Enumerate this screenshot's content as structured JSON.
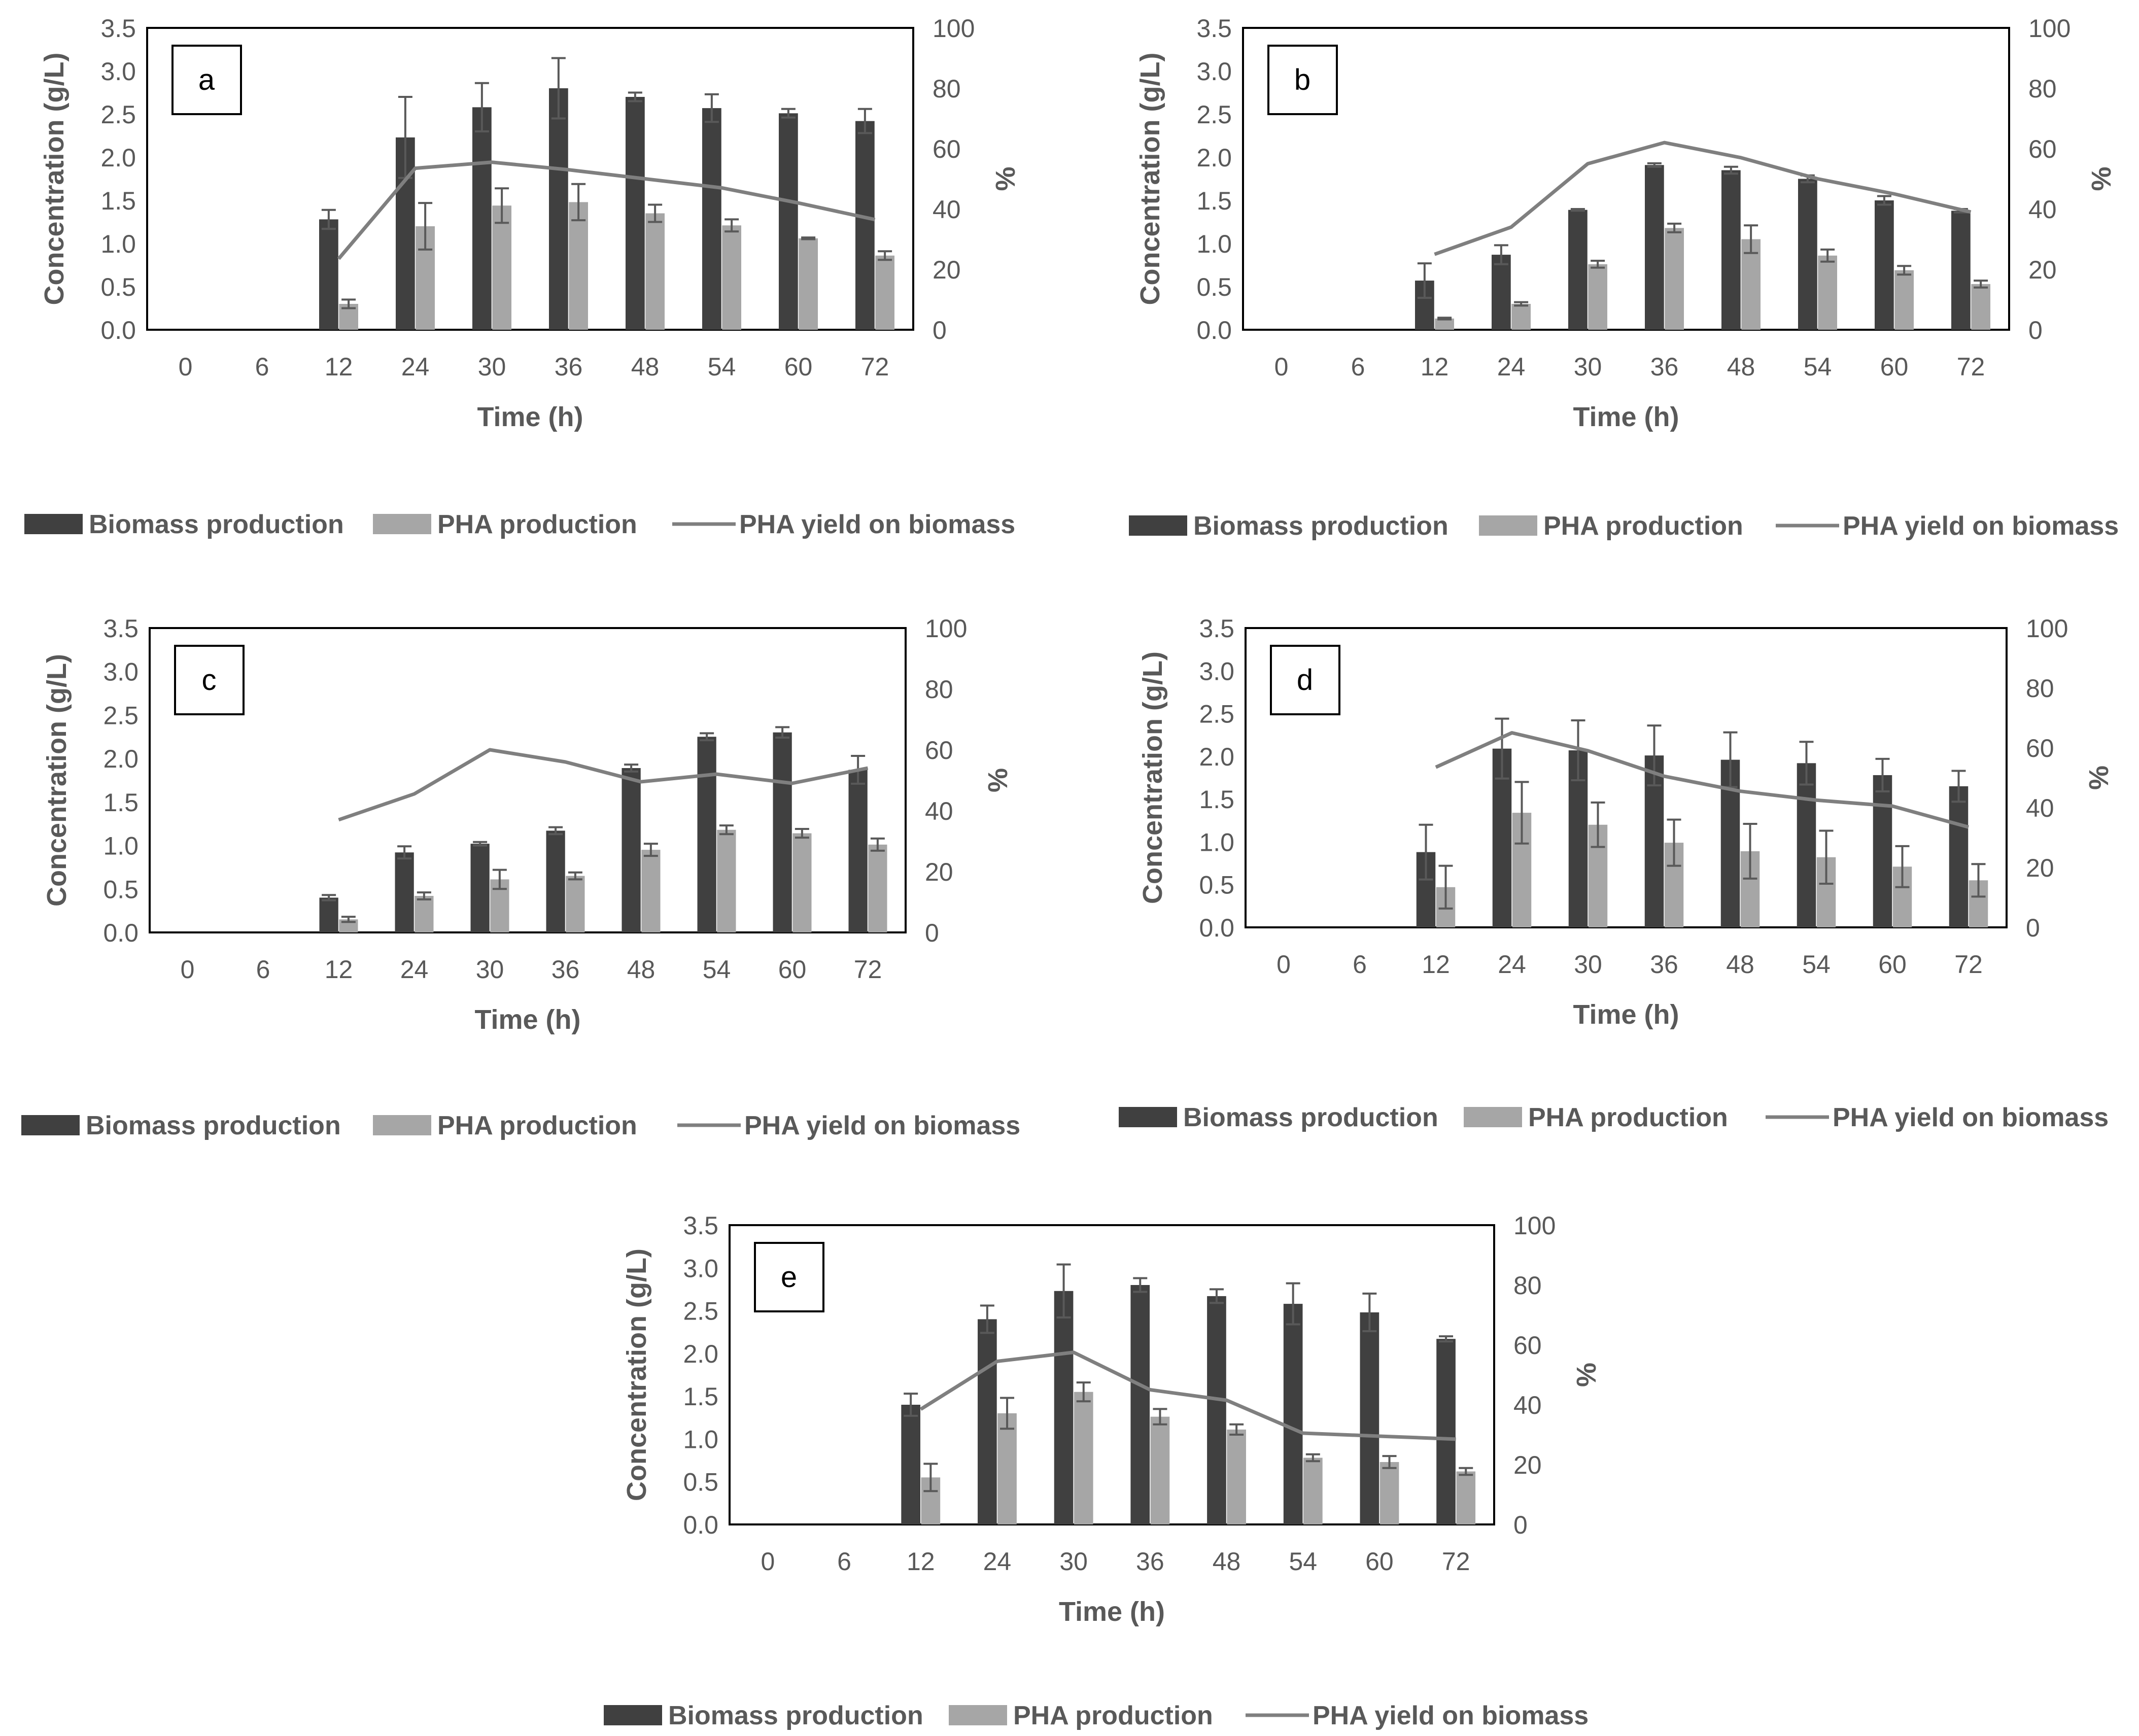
{
  "figure": {
    "colors": {
      "biomass": "#404040",
      "pha": "#a6a6a6",
      "yield_line": "#7f7f7f",
      "error_bar": "#595959",
      "frame": "#000000",
      "text": "#595959"
    }
  },
  "chart_data": [
    {
      "panel": "a",
      "type": "bar",
      "categories": [
        "0",
        "6",
        "12",
        "24",
        "30",
        "36",
        "48",
        "54",
        "60",
        "72"
      ],
      "xlabel": "Time (h)",
      "ylabel": "Concentration (g/L)",
      "y2label": "%",
      "ylim": [
        0,
        3.5
      ],
      "yticks": [
        "0.0",
        "0.5",
        "1.0",
        "1.5",
        "2.0",
        "2.5",
        "3.0",
        "3.5"
      ],
      "y2lim": [
        0,
        100
      ],
      "y2ticks": [
        "0",
        "20",
        "40",
        "60",
        "80",
        "100"
      ],
      "legend": [
        "Biomass production",
        "PHA production",
        "PHA yield on biomass"
      ],
      "series": [
        {
          "name": "Biomass production",
          "kind": "bar",
          "values": [
            null,
            null,
            1.28,
            2.23,
            2.58,
            2.8,
            2.7,
            2.57,
            2.51,
            2.42
          ],
          "errors": [
            null,
            null,
            0.11,
            0.47,
            0.28,
            0.35,
            0.05,
            0.16,
            0.05,
            0.14
          ]
        },
        {
          "name": "PHA production",
          "kind": "bar",
          "values": [
            null,
            null,
            0.3,
            1.2,
            1.44,
            1.48,
            1.35,
            1.21,
            1.06,
            0.86
          ],
          "errors": [
            null,
            null,
            0.05,
            0.27,
            0.2,
            0.21,
            0.1,
            0.07,
            0.01,
            0.05
          ]
        },
        {
          "name": "PHA yield on biomass",
          "kind": "line",
          "axis": "y2",
          "values": [
            null,
            null,
            23.5,
            53.5,
            55.5,
            53.0,
            50.0,
            47.0,
            42.0,
            36.5
          ]
        }
      ]
    },
    {
      "panel": "b",
      "type": "bar",
      "categories": [
        "0",
        "6",
        "12",
        "24",
        "30",
        "36",
        "48",
        "54",
        "60",
        "72"
      ],
      "xlabel": "Time (h)",
      "ylabel": "Concentration (g/L)",
      "y2label": "%",
      "ylim": [
        0,
        3.5
      ],
      "yticks": [
        "0.0",
        "0.5",
        "1.0",
        "1.5",
        "2.0",
        "2.5",
        "3.0",
        "3.5"
      ],
      "y2lim": [
        0,
        100
      ],
      "y2ticks": [
        "0",
        "20",
        "40",
        "60",
        "80",
        "100"
      ],
      "legend": [
        "Biomass production",
        "PHA production",
        "PHA yield on biomass"
      ],
      "series": [
        {
          "name": "Biomass production",
          "kind": "bar",
          "values": [
            null,
            null,
            0.57,
            0.87,
            1.39,
            1.91,
            1.85,
            1.75,
            1.5,
            1.38
          ],
          "errors": [
            null,
            null,
            0.2,
            0.11,
            0.01,
            0.02,
            0.04,
            0.04,
            0.05,
            0.02
          ]
        },
        {
          "name": "PHA production",
          "kind": "bar",
          "values": [
            null,
            null,
            0.13,
            0.3,
            0.76,
            1.18,
            1.05,
            0.86,
            0.69,
            0.53
          ],
          "errors": [
            null,
            null,
            0.01,
            0.02,
            0.04,
            0.05,
            0.16,
            0.07,
            0.05,
            0.04
          ]
        },
        {
          "name": "PHA yield on biomass",
          "kind": "line",
          "axis": "y2",
          "values": [
            null,
            null,
            25.0,
            34.0,
            55.0,
            62.0,
            57.0,
            50.0,
            45.0,
            39.0
          ]
        }
      ]
    },
    {
      "panel": "c",
      "type": "bar",
      "categories": [
        "0",
        "6",
        "12",
        "24",
        "30",
        "36",
        "48",
        "54",
        "60",
        "72"
      ],
      "xlabel": "Time (h)",
      "ylabel": "Concentration (g/L)",
      "y2label": "%",
      "ylim": [
        0,
        3.5
      ],
      "yticks": [
        "0.0",
        "0.5",
        "1.0",
        "1.5",
        "2.0",
        "2.5",
        "3.0",
        "3.5"
      ],
      "y2lim": [
        0,
        100
      ],
      "y2ticks": [
        "0",
        "20",
        "40",
        "60",
        "80",
        "100"
      ],
      "legend": [
        "Biomass production",
        "PHA production",
        "PHA yield on biomass"
      ],
      "series": [
        {
          "name": "Biomass production",
          "kind": "bar",
          "values": [
            null,
            null,
            0.4,
            0.92,
            1.02,
            1.17,
            1.89,
            2.25,
            2.3,
            1.87
          ],
          "errors": [
            null,
            null,
            0.03,
            0.07,
            0.02,
            0.04,
            0.04,
            0.04,
            0.06,
            0.16
          ]
        },
        {
          "name": "PHA production",
          "kind": "bar",
          "values": [
            null,
            null,
            0.15,
            0.42,
            0.61,
            0.65,
            0.95,
            1.18,
            1.14,
            1.01
          ],
          "errors": [
            null,
            null,
            0.03,
            0.04,
            0.11,
            0.04,
            0.07,
            0.05,
            0.05,
            0.07
          ]
        },
        {
          "name": "PHA yield on biomass",
          "kind": "line",
          "axis": "y2",
          "values": [
            null,
            null,
            37.0,
            45.5,
            60.0,
            56.0,
            49.5,
            52.0,
            49.0,
            54.0
          ]
        }
      ]
    },
    {
      "panel": "d",
      "type": "bar",
      "categories": [
        "0",
        "6",
        "12",
        "24",
        "30",
        "36",
        "48",
        "54",
        "60",
        "72"
      ],
      "xlabel": "Time (h)",
      "ylabel": "Concentration (g/L)",
      "y2label": "%",
      "ylim": [
        0,
        3.5
      ],
      "yticks": [
        "0.0",
        "0.5",
        "1.0",
        "1.5",
        "2.0",
        "2.5",
        "3.0",
        "3.5"
      ],
      "y2lim": [
        0,
        100
      ],
      "y2ticks": [
        "0",
        "20",
        "40",
        "60",
        "80",
        "100"
      ],
      "legend": [
        "Biomass production",
        "PHA production",
        "PHA yield on biomass"
      ],
      "series": [
        {
          "name": "Biomass production",
          "kind": "bar",
          "values": [
            null,
            null,
            0.88,
            2.09,
            2.07,
            2.01,
            1.96,
            1.92,
            1.78,
            1.65
          ],
          "errors": [
            null,
            null,
            0.32,
            0.35,
            0.35,
            0.35,
            0.32,
            0.25,
            0.19,
            0.18
          ]
        },
        {
          "name": "PHA production",
          "kind": "bar",
          "values": [
            null,
            null,
            0.47,
            1.34,
            1.2,
            0.99,
            0.89,
            0.82,
            0.71,
            0.55
          ],
          "errors": [
            null,
            null,
            0.25,
            0.36,
            0.26,
            0.27,
            0.32,
            0.31,
            0.24,
            0.19
          ]
        },
        {
          "name": "PHA yield on biomass",
          "kind": "line",
          "axis": "y2",
          "values": [
            null,
            null,
            53.5,
            65.0,
            59.0,
            50.5,
            45.5,
            42.5,
            40.5,
            33.5
          ]
        }
      ]
    },
    {
      "panel": "e",
      "type": "bar",
      "categories": [
        "0",
        "6",
        "12",
        "24",
        "30",
        "36",
        "48",
        "54",
        "60",
        "72"
      ],
      "xlabel": "Time (h)",
      "ylabel": "Concentration (g/L)",
      "y2label": "%",
      "ylim": [
        0,
        3.5
      ],
      "yticks": [
        "0.0",
        "0.5",
        "1.0",
        "1.5",
        "2.0",
        "2.5",
        "3.0",
        "3.5"
      ],
      "y2lim": [
        0,
        100
      ],
      "y2ticks": [
        "0",
        "20",
        "40",
        "60",
        "80",
        "100"
      ],
      "legend": [
        "Biomass production",
        "PHA production",
        "PHA yield on biomass"
      ],
      "series": [
        {
          "name": "Biomass production",
          "kind": "bar",
          "values": [
            null,
            null,
            1.4,
            2.4,
            2.73,
            2.8,
            2.67,
            2.58,
            2.48,
            2.17
          ],
          "errors": [
            null,
            null,
            0.13,
            0.16,
            0.31,
            0.08,
            0.08,
            0.24,
            0.22,
            0.03
          ]
        },
        {
          "name": "PHA production",
          "kind": "bar",
          "values": [
            null,
            null,
            0.55,
            1.3,
            1.55,
            1.26,
            1.11,
            0.78,
            0.73,
            0.62
          ],
          "errors": [
            null,
            null,
            0.16,
            0.18,
            0.11,
            0.09,
            0.06,
            0.04,
            0.07,
            0.04
          ]
        },
        {
          "name": "PHA yield on biomass",
          "kind": "line",
          "axis": "y2",
          "values": [
            null,
            null,
            38.5,
            54.5,
            57.5,
            45.0,
            41.5,
            30.5,
            29.5,
            28.5
          ]
        }
      ]
    }
  ]
}
